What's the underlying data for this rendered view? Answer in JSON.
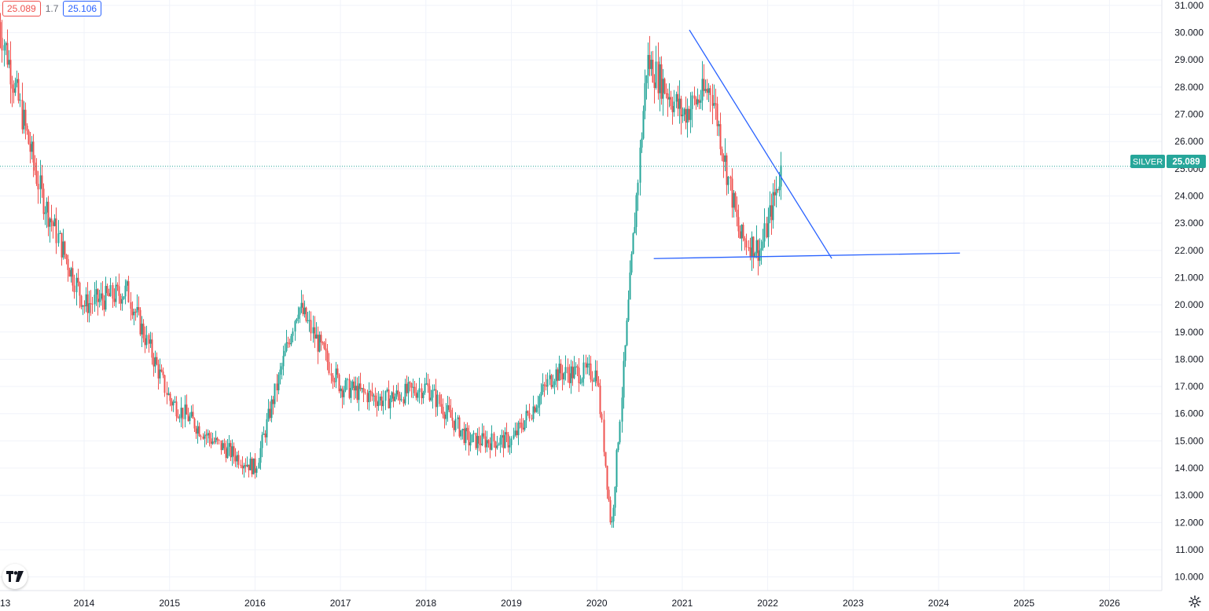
{
  "header": {
    "bid": "25.089",
    "spread": "1.7",
    "ask": "25.106"
  },
  "symbol_label": {
    "name": "SILVER",
    "price": "25.089"
  },
  "icons": {
    "logo": "tradingview-logo-icon",
    "settings": "gear-icon"
  },
  "colors": {
    "up": "#26a69a",
    "down": "#ef5350",
    "trendline": "#2962ff",
    "grid": "#f0f3fa",
    "axis_text": "#131722"
  },
  "chart_data": {
    "type": "candlestick",
    "title": "",
    "xlabel": "",
    "ylabel": "",
    "ylim": [
      9.5,
      31.2
    ],
    "y_ticks": [
      "10.000",
      "11.000",
      "12.000",
      "13.000",
      "14.000",
      "15.000",
      "16.000",
      "17.000",
      "18.000",
      "19.000",
      "20.000",
      "21.000",
      "22.000",
      "23.000",
      "24.000",
      "25.000",
      "26.000",
      "27.000",
      "28.000",
      "29.000",
      "30.000",
      "31.000"
    ],
    "x_ticks": [
      "13",
      "2014",
      "2015",
      "2016",
      "2017",
      "2018",
      "2019",
      "2020",
      "2021",
      "2022",
      "2023",
      "2024",
      "2025",
      "2026"
    ],
    "last_price": 25.089,
    "grid": true,
    "series": [
      {
        "x": [
          "2013-01",
          "2013-07",
          "2014-01",
          "2014-07",
          "2015-01",
          "2015-07",
          "2016-01",
          "2016-07",
          "2017-01",
          "2017-07",
          "2018-01",
          "2018-07",
          "2019-01",
          "2019-07",
          "2020-01",
          "2020-03",
          "2020-08",
          "2021-01",
          "2021-05",
          "2021-09",
          "2021-12",
          "2022-03"
        ],
        "values": [
          30.4,
          24.0,
          20.0,
          20.5,
          16.5,
          15.0,
          14.0,
          20.0,
          17.0,
          16.5,
          17.0,
          15.0,
          15.0,
          17.5,
          17.5,
          11.7,
          29.0,
          27.0,
          28.0,
          22.5,
          22.0,
          25.1
        ]
      }
    ],
    "trendlines": [
      {
        "from": [
          "2021-02",
          30.1
        ],
        "to": [
          "2022-10",
          21.7
        ]
      },
      {
        "from": [
          "2020-09",
          21.7
        ],
        "to": [
          "2024-04",
          21.9
        ]
      }
    ]
  }
}
